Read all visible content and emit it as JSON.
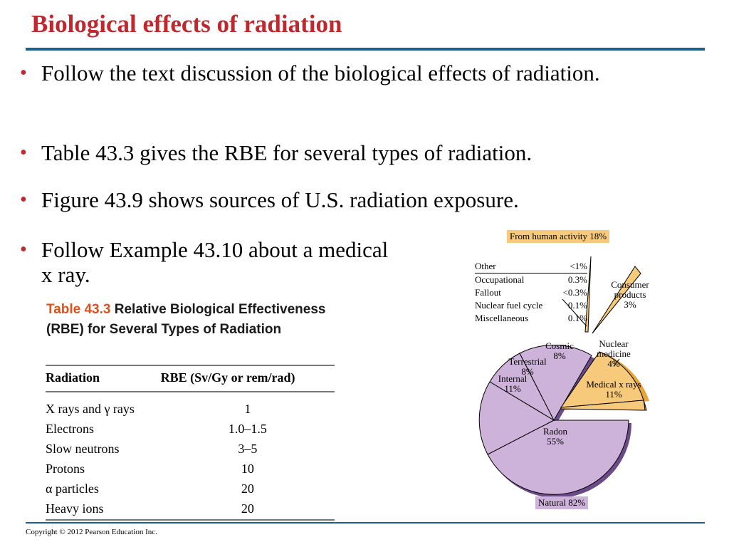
{
  "slide": {
    "title": "Biological effects of radiation",
    "bullets": [
      "Follow the text discussion of the biological effects of radiation.",
      "Table 43.3 gives the RBE for several types of radiation.",
      "Figure 43.9 shows sources of U.S. radiation exposure.",
      "Follow Example 43.10 about a medical x ray."
    ],
    "bullet_marker": "•",
    "copyright": "Copyright © 2012 Pearson Education Inc."
  },
  "table": {
    "number": "Table 43.3",
    "caption": "Relative Biological Effectiveness (RBE) for Several Types of Radiation",
    "headers": [
      "Radiation",
      "RBE (Sv/Gy or rem/rad)"
    ],
    "rows": [
      [
        "X rays and γ rays",
        "1"
      ],
      [
        "Electrons",
        "1.0–1.5"
      ],
      [
        "Slow neutrons",
        "3–5"
      ],
      [
        "Protons",
        "10"
      ],
      [
        "α particles",
        "20"
      ],
      [
        "Heavy ions",
        "20"
      ]
    ]
  },
  "figure": {
    "human_label": "From human activity 18%",
    "natural_label": "Natural 82%",
    "minor_sources": [
      {
        "name": "Other",
        "value": "<1%"
      },
      {
        "name": "Occupational",
        "value": "0.3%"
      },
      {
        "name": "Fallout",
        "value": "<0.3%"
      },
      {
        "name": "Nuclear fuel cycle",
        "value": "0.1%"
      },
      {
        "name": "Miscellaneous",
        "value": "0.1%"
      }
    ],
    "slices": {
      "consumer": {
        "name": "Consumer products",
        "line1": "Consumer",
        "line2": "products",
        "value": "3%"
      },
      "nuclear_medicine": {
        "name": "Nuclear medicine",
        "line1": "Nuclear",
        "line2": "medicine",
        "value": "4%"
      },
      "medical_xrays": {
        "name": "Medical x rays",
        "value": "11%"
      },
      "cosmic": {
        "name": "Cosmic",
        "value": "8%"
      },
      "terrestrial": {
        "name": "Terrestrial",
        "value": "8%"
      },
      "internal": {
        "name": "Internal",
        "value": "11%"
      },
      "radon": {
        "name": "Radon",
        "value": "55%"
      }
    },
    "colors": {
      "natural": "#cdb3d9",
      "natural_dark": "#6b4a8a",
      "human": "#f7c97a",
      "human_dark": "#e8a33d"
    }
  }
}
